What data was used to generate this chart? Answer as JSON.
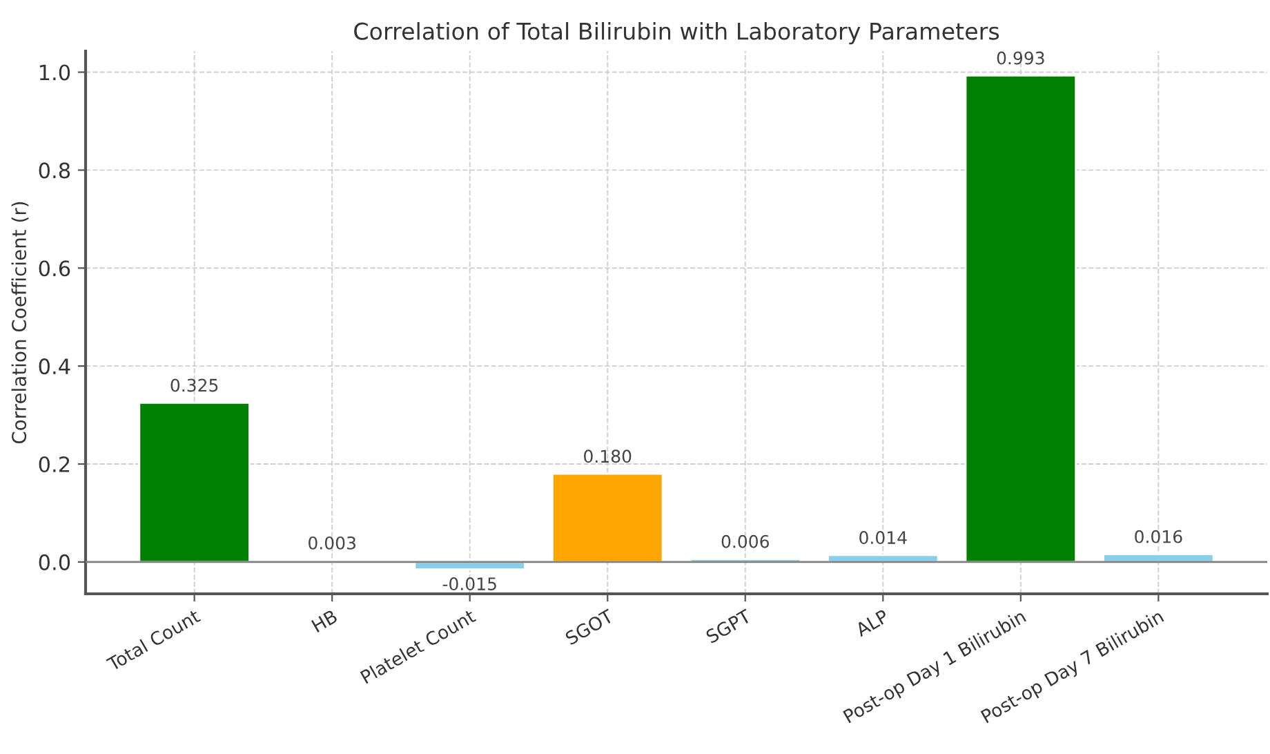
{
  "chart_data": {
    "type": "bar",
    "title": "Correlation of Total Bilirubin with Laboratory Parameters",
    "ylabel": "Correlation Coefficient (r)",
    "categories": [
      "Total Count",
      "HB",
      "Platelet Count",
      "SGOT",
      "SGPT",
      "ALP",
      "Post-op Day 1 Bilirubin",
      "Post-op Day 7 Bilirubin"
    ],
    "values": [
      0.325,
      0.003,
      -0.015,
      0.18,
      0.006,
      0.014,
      0.993,
      0.016
    ],
    "value_labels": [
      "0.325",
      "0.003",
      "-0.015",
      "0.180",
      "0.006",
      "0.014",
      "0.993",
      "0.016"
    ],
    "colors": [
      "#008000",
      "#87ceeb",
      "#87ceeb",
      "#ffa500",
      "#87ceeb",
      "#87ceeb",
      "#008000",
      "#87ceeb"
    ],
    "ylim": [
      -0.065,
      1.043
    ],
    "yticks": [
      {
        "value": 0,
        "label": "0.0"
      },
      0.2,
      0.4,
      0.6,
      0.8,
      {
        "value": 1,
        "label": "1.0"
      }
    ],
    "ref_lines": [
      {
        "axis": "y",
        "value": 0,
        "label": null,
        "color": "#808080"
      }
    ],
    "grid": true
  }
}
